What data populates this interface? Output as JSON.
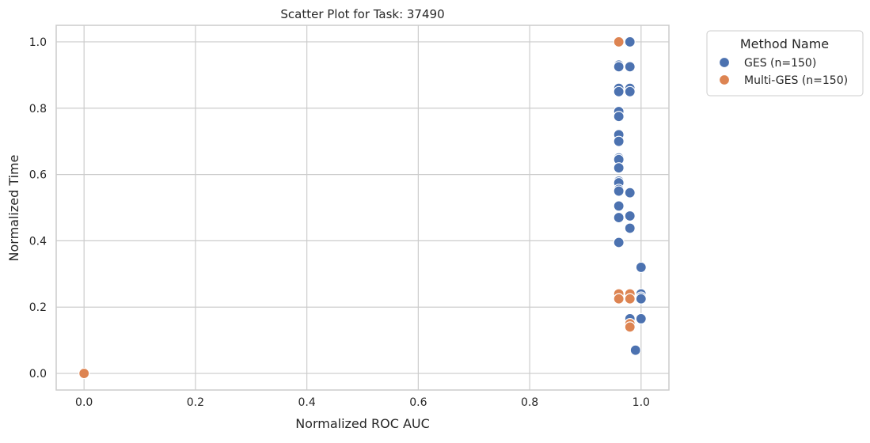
{
  "chart_data": {
    "type": "scatter",
    "title": "Scatter Plot for Task: 37490",
    "xlabel": "Normalized ROC AUC",
    "ylabel": "Normalized Time",
    "xlim": [
      -0.05,
      1.05
    ],
    "ylim": [
      -0.05,
      1.05
    ],
    "xticks": [
      "0.0",
      "0.2",
      "0.4",
      "0.6",
      "0.8",
      "1.0"
    ],
    "yticks": [
      "0.0",
      "0.2",
      "0.4",
      "0.6",
      "0.8",
      "1.0"
    ],
    "grid": true,
    "legend": {
      "title": "Method Name",
      "placement": "outside-top-right"
    },
    "series": [
      {
        "name": "GES (n=150)",
        "color": "#4c72b0",
        "points": [
          [
            0.98,
            1.0
          ],
          [
            0.96,
            0.93
          ],
          [
            0.96,
            0.925
          ],
          [
            0.98,
            0.925
          ],
          [
            0.96,
            0.86
          ],
          [
            0.98,
            0.86
          ],
          [
            0.98,
            0.85
          ],
          [
            0.96,
            0.85
          ],
          [
            0.96,
            0.79
          ],
          [
            0.96,
            0.775
          ],
          [
            0.96,
            0.72
          ],
          [
            0.96,
            0.7
          ],
          [
            0.96,
            0.65
          ],
          [
            0.96,
            0.645
          ],
          [
            0.96,
            0.62
          ],
          [
            0.96,
            0.58
          ],
          [
            0.96,
            0.575
          ],
          [
            0.96,
            0.555
          ],
          [
            0.96,
            0.55
          ],
          [
            0.98,
            0.545
          ],
          [
            0.96,
            0.505
          ],
          [
            0.96,
            0.47
          ],
          [
            0.98,
            0.475
          ],
          [
            0.98,
            0.438
          ],
          [
            0.96,
            0.395
          ],
          [
            1.0,
            0.32
          ],
          [
            1.0,
            0.24
          ],
          [
            1.0,
            0.23
          ],
          [
            1.0,
            0.225
          ],
          [
            0.98,
            0.165
          ],
          [
            1.0,
            0.165
          ],
          [
            0.98,
            0.15
          ],
          [
            0.99,
            0.07
          ],
          [
            0.0,
            0.0
          ]
        ]
      },
      {
        "name": "Multi-GES (n=150)",
        "color": "#dd8452",
        "points": [
          [
            0.96,
            1.0
          ],
          [
            0.96,
            0.24
          ],
          [
            0.98,
            0.24
          ],
          [
            0.96,
            0.225
          ],
          [
            0.98,
            0.225
          ],
          [
            0.98,
            0.15
          ],
          [
            0.98,
            0.14
          ],
          [
            0.0,
            0.0
          ]
        ]
      }
    ]
  }
}
